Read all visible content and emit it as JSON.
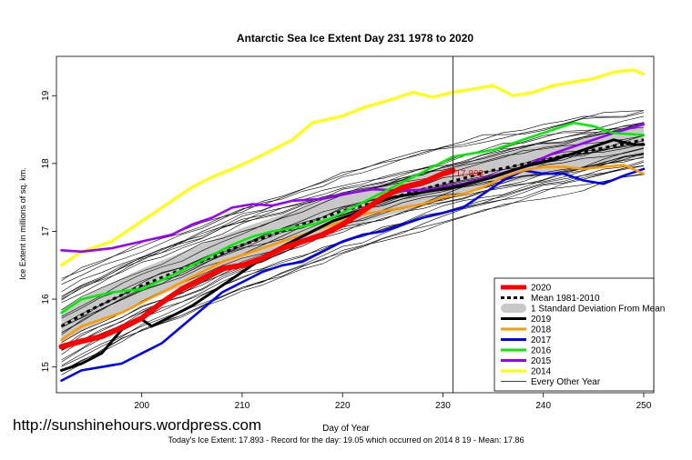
{
  "watermark": "http://sunshinehours.wordpress.com",
  "footer": "Today's Ice Extent: 17.893  - Record for the day: 19.05 which occurred on 2014 8 19  - Mean: 17.86",
  "chart_data": {
    "type": "line",
    "title": "Antarctic Sea Ice Extent Day 231 1978 to 2020",
    "xlabel": "Day of Year",
    "ylabel": "Ice Extent in millions of sq. km.",
    "xlim": [
      191.5,
      251
    ],
    "ylim": [
      14.62,
      19.58
    ],
    "xticks": [
      200,
      210,
      220,
      230,
      240,
      250
    ],
    "yticks": [
      15,
      16,
      17,
      18,
      19
    ],
    "current_day": 231,
    "annotation": {
      "text": "17.893",
      "x": 231,
      "y": 17.893,
      "color": "#ff0000"
    },
    "legend": {
      "position": "bottom-right",
      "entries": [
        {
          "label": "2020",
          "color": "#ff0000",
          "style": "thick"
        },
        {
          "label": "Mean 1981-2010",
          "color": "#000000",
          "style": "dashed"
        },
        {
          "label": "1 Standard Deviation From Mean",
          "color": "#c8c8c8",
          "style": "band"
        },
        {
          "label": "2019",
          "color": "#000000",
          "style": "solid"
        },
        {
          "label": "2018",
          "color": "#ff9900",
          "style": "solid"
        },
        {
          "label": "2017",
          "color": "#0000ff",
          "style": "solid"
        },
        {
          "label": "2016",
          "color": "#00ee00",
          "style": "solid"
        },
        {
          "label": "2015",
          "color": "#9900ff",
          "style": "solid"
        },
        {
          "label": "2014",
          "color": "#ffff00",
          "style": "solid"
        },
        {
          "label": "Every Other Year",
          "color": "#000000",
          "style": "thin"
        }
      ]
    },
    "mean": {
      "x": [
        192,
        195,
        200,
        205,
        210,
        215,
        220,
        225,
        230,
        235,
        240,
        245,
        250
      ],
      "y": [
        15.6,
        15.85,
        16.2,
        16.5,
        16.8,
        17.05,
        17.3,
        17.5,
        17.7,
        17.9,
        18.05,
        18.2,
        18.35
      ]
    },
    "std_band": {
      "x": [
        192,
        195,
        200,
        205,
        210,
        215,
        220,
        225,
        230,
        235,
        240,
        245,
        250
      ],
      "lower": [
        15.35,
        15.6,
        15.95,
        16.25,
        16.55,
        16.8,
        17.05,
        17.25,
        17.47,
        17.67,
        17.82,
        17.97,
        18.1
      ],
      "upper": [
        15.85,
        16.1,
        16.45,
        16.75,
        17.05,
        17.3,
        17.55,
        17.75,
        17.93,
        18.13,
        18.28,
        18.43,
        18.6
      ]
    },
    "series": [
      {
        "name": "2014",
        "color": "#ffff00",
        "x": [
          192,
          194,
          197,
          200,
          203,
          205,
          207,
          209,
          211,
          213,
          215,
          217,
          220,
          222,
          225,
          227,
          229,
          231,
          233,
          235,
          237,
          239,
          241,
          243,
          245,
          247,
          249,
          250
        ],
        "y": [
          16.5,
          16.7,
          16.85,
          17.15,
          17.45,
          17.65,
          17.8,
          17.92,
          18.05,
          18.2,
          18.35,
          18.6,
          18.7,
          18.82,
          18.95,
          19.05,
          18.98,
          19.05,
          19.1,
          19.15,
          19.0,
          19.05,
          19.15,
          19.2,
          19.25,
          19.35,
          19.38,
          19.32
        ]
      },
      {
        "name": "2015",
        "color": "#9900ff",
        "x": [
          192,
          194,
          197,
          200,
          203,
          205,
          207,
          209,
          211,
          213,
          215,
          218,
          220,
          223,
          226,
          229,
          232,
          235,
          238,
          241,
          244,
          247,
          250
        ],
        "y": [
          16.72,
          16.7,
          16.75,
          16.85,
          16.95,
          17.1,
          17.2,
          17.35,
          17.4,
          17.38,
          17.45,
          17.48,
          17.55,
          17.62,
          17.6,
          17.62,
          17.7,
          17.82,
          17.95,
          18.15,
          18.3,
          18.45,
          18.58
        ]
      },
      {
        "name": "2016",
        "color": "#00ee00",
        "x": [
          192,
          194,
          197,
          200,
          203,
          205,
          207,
          209,
          211,
          213,
          215,
          217,
          219,
          221,
          223,
          225,
          227,
          229,
          231,
          233,
          235,
          237,
          239,
          241,
          243,
          245,
          247,
          250
        ],
        "y": [
          15.8,
          16.0,
          16.1,
          16.15,
          16.35,
          16.5,
          16.65,
          16.8,
          16.92,
          17.0,
          17.05,
          17.1,
          17.2,
          17.35,
          17.5,
          17.65,
          17.8,
          17.95,
          18.1,
          18.15,
          18.2,
          18.3,
          18.4,
          18.5,
          18.6,
          18.55,
          18.45,
          18.42
        ]
      },
      {
        "name": "2017",
        "color": "#0000ff",
        "x": [
          192,
          194,
          196,
          198,
          200,
          202,
          204,
          206,
          208,
          210,
          212,
          214,
          216,
          218,
          220,
          222,
          224,
          226,
          228,
          230,
          232,
          234,
          236,
          238,
          240,
          242,
          244,
          246,
          248,
          250
        ],
        "y": [
          14.8,
          14.95,
          15.0,
          15.05,
          15.2,
          15.35,
          15.6,
          15.85,
          16.1,
          16.25,
          16.4,
          16.5,
          16.55,
          16.7,
          16.85,
          16.95,
          17.0,
          17.1,
          17.2,
          17.27,
          17.35,
          17.55,
          17.75,
          17.9,
          17.85,
          17.85,
          17.75,
          17.7,
          17.82,
          17.92
        ]
      },
      {
        "name": "2018",
        "color": "#ff9900",
        "x": [
          192,
          194,
          196,
          198,
          200,
          202,
          204,
          206,
          208,
          210,
          212,
          214,
          216,
          218,
          220,
          222,
          224,
          226,
          228,
          230,
          232,
          234,
          236,
          238,
          240,
          242,
          244,
          246,
          248,
          250
        ],
        "y": [
          15.4,
          15.6,
          15.7,
          15.8,
          15.95,
          16.1,
          16.25,
          16.4,
          16.55,
          16.65,
          16.75,
          16.85,
          16.95,
          17.05,
          17.15,
          17.25,
          17.3,
          17.35,
          17.4,
          17.5,
          17.55,
          17.65,
          17.8,
          17.9,
          17.95,
          17.95,
          17.92,
          17.95,
          17.98,
          17.85
        ]
      },
      {
        "name": "2019",
        "color": "#000000",
        "x": [
          192,
          194,
          196,
          198,
          200,
          201,
          203,
          205,
          207,
          209,
          211,
          213,
          215,
          217,
          219,
          221,
          223,
          225,
          227,
          229,
          231,
          233,
          235,
          237,
          239,
          241,
          243,
          245,
          247,
          249,
          250
        ],
        "y": [
          14.95,
          15.05,
          15.2,
          15.55,
          15.7,
          15.6,
          15.75,
          15.9,
          16.1,
          16.3,
          16.5,
          16.7,
          16.85,
          17.0,
          17.15,
          17.25,
          17.4,
          17.5,
          17.55,
          17.6,
          17.65,
          17.72,
          17.8,
          17.9,
          18.0,
          18.05,
          18.15,
          18.25,
          18.35,
          18.28,
          18.28
        ]
      },
      {
        "name": "2020",
        "color": "#ff0000",
        "x": [
          192,
          194,
          196,
          198,
          200,
          202,
          204,
          206,
          208,
          210,
          212,
          214,
          216,
          218,
          220,
          222,
          224,
          226,
          228,
          230,
          231
        ],
        "y": [
          15.3,
          15.38,
          15.45,
          15.58,
          15.72,
          15.95,
          16.15,
          16.3,
          16.45,
          16.5,
          16.6,
          16.75,
          16.85,
          16.95,
          17.1,
          17.3,
          17.5,
          17.65,
          17.72,
          17.85,
          17.893
        ]
      }
    ]
  }
}
